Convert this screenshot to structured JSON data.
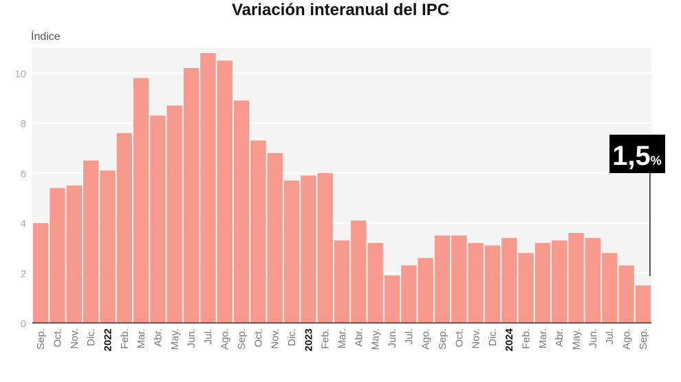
{
  "chart_data": {
    "type": "bar",
    "title": "Variación interanual del IPC",
    "ylabel": "Índice",
    "xlabel": "",
    "ylim": [
      0,
      11
    ],
    "yticks": [
      0,
      2,
      4,
      6,
      8,
      10
    ],
    "grid": true,
    "bar_color": "#f7998c",
    "categories": [
      "Sep.",
      "Oct.",
      "Nov.",
      "Dic.",
      "2022",
      "Feb.",
      "Mar.",
      "Abr.",
      "May.",
      "Jun.",
      "Jul.",
      "Ago.",
      "Sep.",
      "Oct.",
      "Nov.",
      "Dic.",
      "2023",
      "Feb.",
      "Mar.",
      "Abr.",
      "May.",
      "Jun.",
      "Jul.",
      "Ago.",
      "Sep.",
      "Oct.",
      "Nov.",
      "Dic.",
      "2024",
      "Feb.",
      "Mar.",
      "Abr.",
      "May.",
      "Jun.",
      "Jul.",
      "Ago.",
      "Sep."
    ],
    "bold_categories": [
      "2022",
      "2023",
      "2024"
    ],
    "values": [
      4.0,
      5.4,
      5.5,
      6.5,
      6.1,
      7.6,
      9.8,
      8.3,
      8.7,
      10.2,
      10.8,
      10.5,
      8.9,
      7.3,
      6.8,
      5.7,
      5.9,
      6.0,
      3.3,
      4.1,
      3.2,
      1.9,
      2.3,
      2.6,
      3.5,
      3.5,
      3.2,
      3.1,
      3.4,
      2.8,
      3.2,
      3.3,
      3.6,
      3.4,
      2.8,
      2.3,
      1.5
    ],
    "annotation": {
      "value": "1,5",
      "unit": "%",
      "category_index": 36
    }
  }
}
